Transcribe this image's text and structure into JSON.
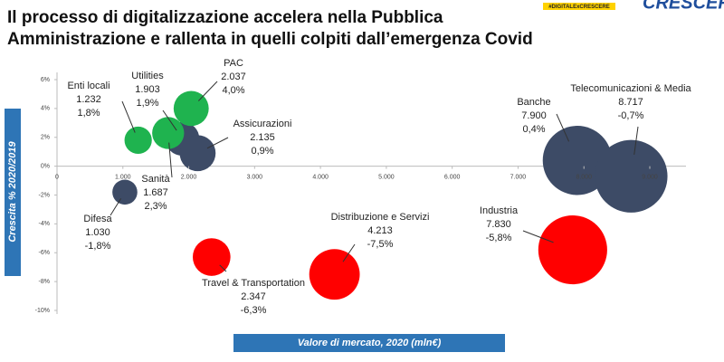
{
  "logo": {
    "tag": "#DIGITALExCRESCERE",
    "word": "CRESCERE"
  },
  "chart_data": {
    "type": "bubble",
    "title": [
      "Il processo di digitalizzazione accelera nella Pubblica",
      "Amministrazione e rallenta in quelli colpiti dall’emergenza Covid"
    ],
    "x_label": "Valore di mercato, 2020 (mln€)",
    "y_label": "Crescita % 2020/2019",
    "labels": [
      "Enti locali",
      "Utilities",
      "PAC",
      "Assicurazioni",
      "Sanità",
      "Difesa",
      "Travel & Transportation",
      "Distribuzione e Servizi",
      "Industria",
      "Banche",
      "Telecomunicazioni  & Media"
    ],
    "x": [
      1232,
      1903,
      2037,
      2135,
      1687,
      1030,
      2347,
      4213,
      7830,
      7900,
      8717
    ],
    "x_labels": [
      "1.232",
      "1.903",
      "2.037",
      "2.135",
      "1.687",
      "1.030",
      "2.347",
      "4.213",
      "7.830",
      "7.900",
      "8.717"
    ],
    "values": [
      1.8,
      1.9,
      4.0,
      0.9,
      2.3,
      -1.8,
      -6.3,
      -7.5,
      -5.8,
      0.4,
      -0.7
    ],
    "value_labels": [
      "1,8%",
      "1,9%",
      "4,0%",
      "0,9%",
      "2,3%",
      "-1,8%",
      "-6,3%",
      "-7,5%",
      "-5,8%",
      "0,4%",
      "-0,7%"
    ],
    "colors": [
      "#1fb34f",
      "#3d4b66",
      "#1fb34f",
      "#3d4b66",
      "#1fb34f",
      "#3d4b66",
      "#ff0000",
      "#ff0000",
      "#ff0000",
      "#3d4b66",
      "#3d4b66"
    ],
    "xlim": [
      0,
      9000
    ],
    "xticks": [
      0,
      {
        "value": 1000,
        "label": "1.000"
      },
      {
        "value": 2000,
        "label": "2.000"
      },
      {
        "value": 3000,
        "label": "3.000"
      },
      {
        "value": 4000,
        "label": "4.000"
      },
      {
        "value": 5000,
        "label": "5.000"
      },
      {
        "value": 6000,
        "label": "6.000"
      },
      {
        "value": 7000,
        "label": "7.000"
      },
      {
        "value": 8000,
        "label": "8.000"
      },
      {
        "value": 9000,
        "label": "9.000"
      }
    ],
    "ylim": [
      -10,
      6
    ],
    "yticks": [
      {
        "value": -10,
        "label": "-10%"
      },
      {
        "value": -8,
        "label": "-8%"
      },
      {
        "value": -6,
        "label": "-6%"
      },
      {
        "value": -4,
        "label": "-4%"
      },
      {
        "value": -2,
        "label": "-2%"
      },
      {
        "value": 0,
        "label": "0%"
      },
      {
        "value": 2,
        "label": "2%"
      },
      {
        "value": 4,
        "label": "4%"
      },
      {
        "value": 6,
        "label": "6%"
      }
    ]
  }
}
